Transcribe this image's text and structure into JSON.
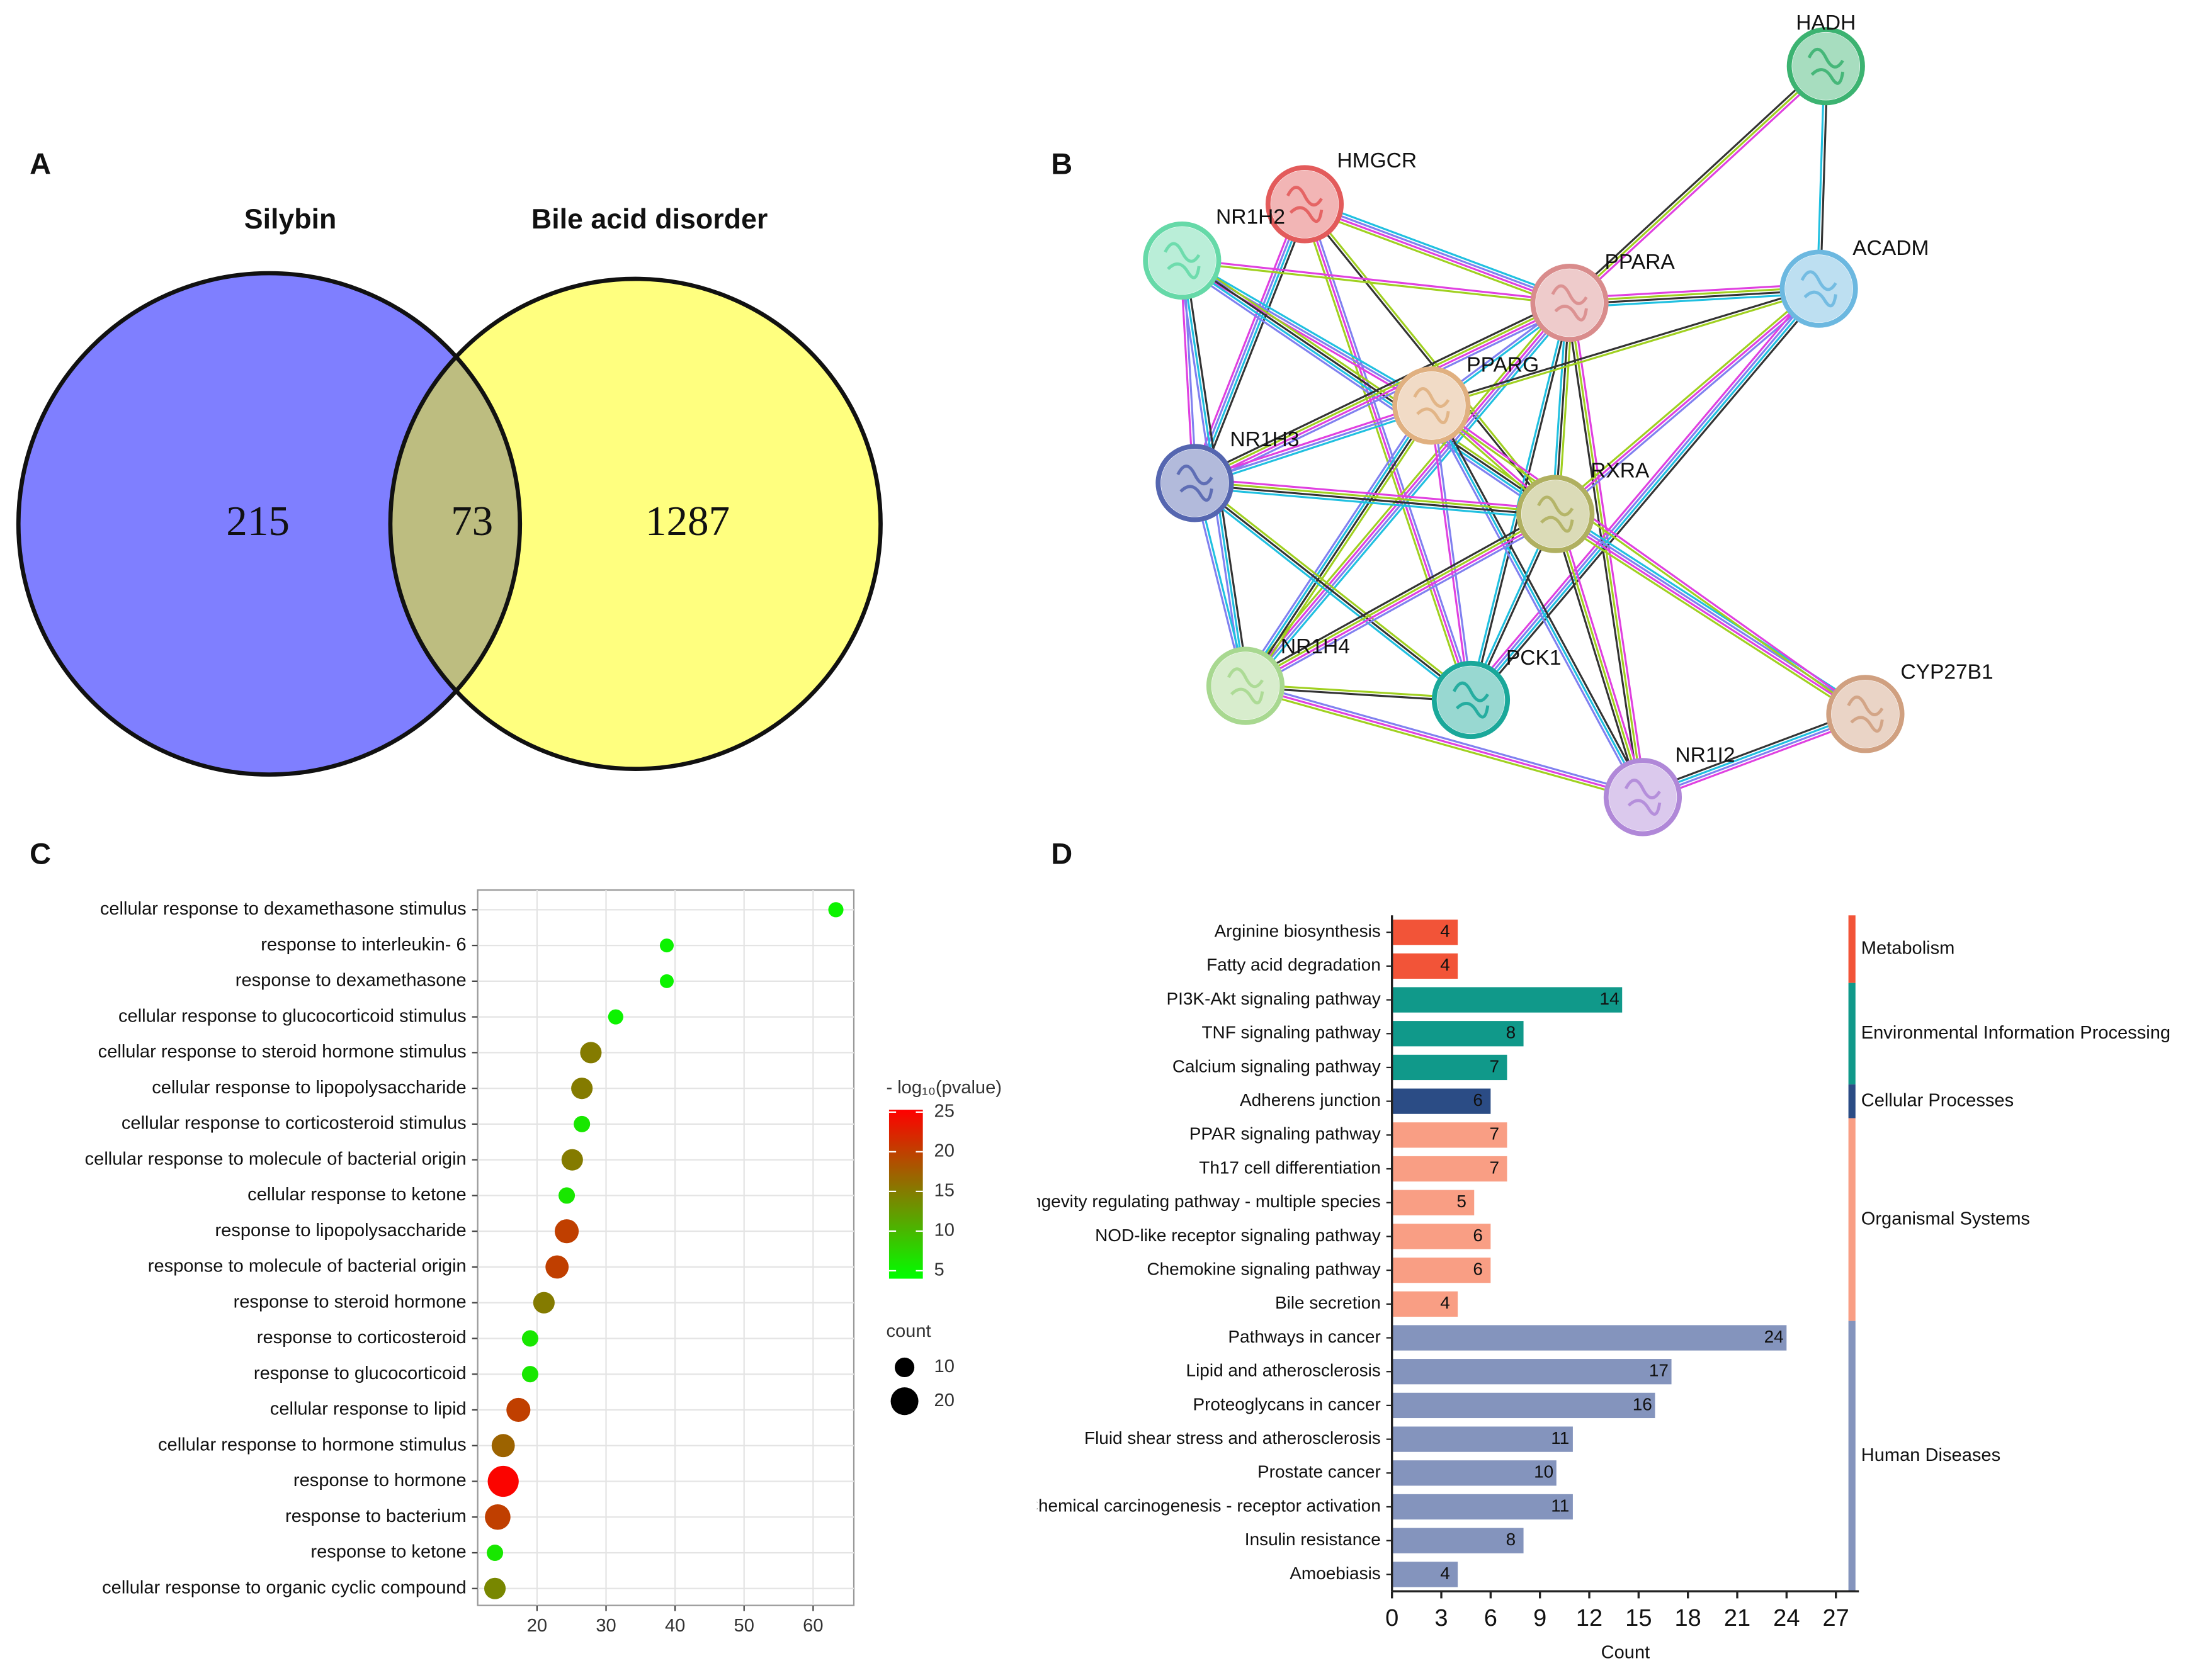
{
  "chart_data": [
    {
      "type": "venn",
      "panel": "A",
      "sets": [
        {
          "name": "Silybin",
          "color": "#7f7fff",
          "count": 215
        },
        {
          "name": "Bile acid disorder",
          "color": "#ffff7f",
          "count": 1287
        }
      ],
      "overlap": {
        "count": 73,
        "color": "#bdbd80"
      }
    },
    {
      "type": "network",
      "panel": "B",
      "nodes": [
        {
          "label": "HADH",
          "color": "#3cb371"
        },
        {
          "label": "HMGCR",
          "color": "#e35b5b"
        },
        {
          "label": "NR1H2",
          "color": "#66d9a8"
        },
        {
          "label": "PPARA",
          "color": "#d98c8c"
        },
        {
          "label": "ACADM",
          "color": "#6cb8e0"
        },
        {
          "label": "PPARG",
          "color": "#e0b080"
        },
        {
          "label": "NR1H3",
          "color": "#5566b0"
        },
        {
          "label": "RXRA",
          "color": "#b0b060"
        },
        {
          "label": "NR1H4",
          "color": "#a8d890"
        },
        {
          "label": "PCK1",
          "color": "#1aa89a"
        },
        {
          "label": "CYP27B1",
          "color": "#d0a080"
        },
        {
          "label": "NR1I2",
          "color": "#b088d8"
        }
      ]
    },
    {
      "type": "dot",
      "panel": "C",
      "categories": [
        "cellular response to dexamethasone stimulus",
        "response to interleukin- 6",
        "response to dexamethasone",
        "cellular response to glucocorticoid stimulus",
        "cellular response to steroid hormone stimulus",
        "cellular response to lipopolysaccharide",
        "cellular response to corticosteroid stimulus",
        "cellular response to molecule of bacterial origin",
        "cellular response to ketone",
        "response to lipopolysaccharide",
        "response to molecule of bacterial origin",
        "response to steroid hormone",
        "response to corticosteroid",
        "response to glucocorticoid",
        "cellular response to lipid",
        "cellular response to hormone stimulus",
        "response to hormone",
        "response to bacterium",
        "response to ketone",
        "cellular response to organic cyclic compound"
      ],
      "values": [
        63.3,
        38.8,
        38.8,
        31.4,
        27.8,
        26.5,
        26.5,
        25.1,
        24.3,
        24.3,
        22.9,
        21.0,
        19.0,
        19.0,
        17.3,
        15.1,
        15.1,
        14.3,
        13.9,
        13.9
      ],
      "color_values": [
        5,
        5,
        5,
        5,
        15,
        15,
        6,
        15,
        6,
        20,
        20,
        15,
        6,
        6,
        20,
        17,
        25,
        20,
        6,
        14
      ],
      "size_values": [
        6,
        5,
        5,
        6,
        12,
        12,
        7,
        12,
        7,
        15,
        14,
        12,
        7,
        7,
        15,
        14,
        25,
        17,
        7,
        12
      ],
      "xlim": [
        11.4,
        65.9
      ],
      "xticks": [
        20,
        30,
        40,
        50,
        60
      ],
      "grid": true,
      "colorbar": {
        "title": "- log₁₀(pvalue)",
        "colors": [
          "#00ff00",
          "#ff0000"
        ],
        "lim": [
          4,
          25.3
        ],
        "ticks": [
          5,
          10,
          15,
          20,
          25
        ]
      },
      "size_legend": {
        "title": "count",
        "values": [
          10,
          20
        ]
      }
    },
    {
      "type": "bar",
      "orientation": "horizontal",
      "panel": "D",
      "xlabel": "Count",
      "xlim": [
        0,
        28.4
      ],
      "xticks": [
        0,
        3,
        6,
        9,
        12,
        15,
        18,
        21,
        24,
        27
      ],
      "series": [
        {
          "name": "Metabolism",
          "color": "#f25438",
          "categories": [
            "Arginine biosynthesis",
            "Fatty acid degradation"
          ],
          "values": [
            4,
            4
          ]
        },
        {
          "name": "Environmental Information Processing",
          "color": "#10998a",
          "categories": [
            "PI3K-Akt signaling pathway",
            "TNF signaling pathway",
            "Calcium signaling pathway"
          ],
          "values": [
            14,
            8,
            7
          ]
        },
        {
          "name": "Cellular Processes",
          "color": "#2b4c85",
          "categories": [
            "Adherens junction"
          ],
          "values": [
            6
          ]
        },
        {
          "name": "Organismal Systems",
          "color": "#f99e84",
          "categories": [
            "PPAR signaling pathway",
            "Th17 cell differentiation",
            "Longevity regulating pathway - multiple species",
            "NOD-like receptor signaling pathway",
            "Chemokine signaling pathway",
            "Bile secretion"
          ],
          "values": [
            7,
            7,
            5,
            6,
            6,
            4
          ]
        },
        {
          "name": "Human Diseases",
          "color": "#8494bd",
          "categories": [
            "Pathways in cancer",
            "Lipid and atherosclerosis",
            "Proteoglycans in cancer",
            "Fluid shear stress and atherosclerosis",
            "Prostate cancer",
            "Chemical carcinogenesis - receptor activation",
            "Insulin resistance",
            "Amoebiasis"
          ],
          "values": [
            24,
            17,
            16,
            11,
            10,
            11,
            8,
            4
          ]
        }
      ]
    }
  ]
}
